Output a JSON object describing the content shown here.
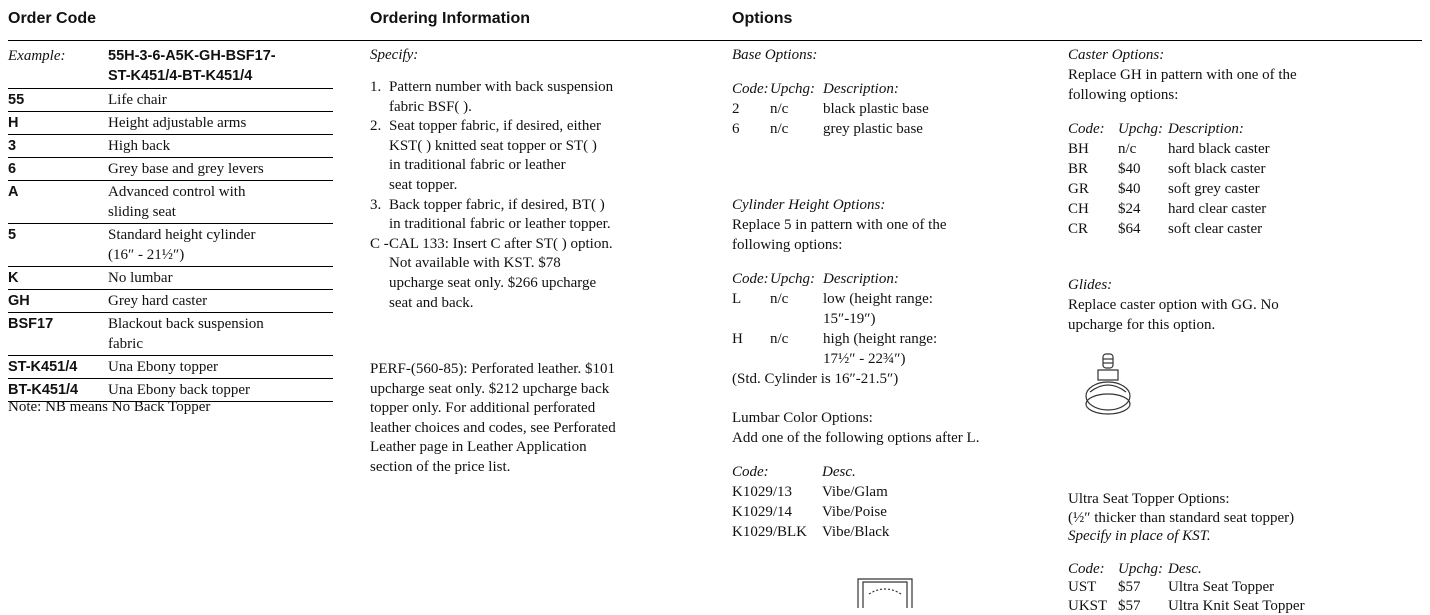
{
  "header": {
    "order_code": "Order Code",
    "ordering_information": "Ordering Information",
    "options": "Options"
  },
  "order_code": {
    "example_label": "Example:",
    "example_value": [
      "55H-3-6-A5K-GH-BSF17-",
      "ST-K451/4-BT-K451/4"
    ],
    "rows": [
      [
        "55",
        "Life chair"
      ],
      [
        "H",
        "Height adjustable arms"
      ],
      [
        "3",
        "High back"
      ],
      [
        "6",
        "Grey base and grey levers"
      ],
      [
        "A",
        [
          "Advanced control with",
          "sliding seat"
        ]
      ],
      [
        "5",
        [
          "Standard height cylinder",
          "(16″ - 21½″)"
        ]
      ],
      [
        "K",
        "No lumbar"
      ],
      [
        "GH",
        "Grey hard caster"
      ],
      [
        "BSF17",
        [
          "Blackout back suspension",
          "fabric"
        ]
      ],
      [
        "ST-K451/4",
        "Una Ebony topper"
      ],
      [
        "BT-K451/4",
        "Una Ebony back topper"
      ]
    ],
    "note": "Note: NB means No Back Topper"
  },
  "ordering_info": {
    "specify": "Specify:",
    "items": [
      {
        "num": "1.",
        "lines": [
          "Pattern number with back suspension",
          "fabric BSF( )."
        ]
      },
      {
        "num": "2.",
        "lines": [
          "Seat topper fabric, if desired, either",
          "KST( ) knitted seat topper or ST( )",
          "in traditional fabric or leather",
          "seat topper."
        ]
      },
      {
        "num": "3.",
        "lines": [
          "Back topper fabric, if desired, BT( )",
          "in traditional fabric or leather topper."
        ]
      },
      {
        "num": "C -",
        "lines": [
          "CAL 133: Insert C after ST( ) option.",
          "Not available with KST. $78",
          "upcharge seat only. $266 upcharge",
          "seat and back."
        ]
      }
    ],
    "perf": [
      "PERF-(560-85): Perforated leather. $101",
      "upcharge seat only. $212 upcharge back",
      "topper only. For additional perforated",
      "leather choices and codes, see Perforated",
      "Leather page in Leather Application",
      "section of the price list."
    ]
  },
  "options": {
    "base": {
      "title": "Base Options:",
      "headers": [
        "Code:",
        "Upchg:",
        "Description:"
      ],
      "rows": [
        [
          "2",
          "n/c",
          "black plastic base"
        ],
        [
          "6",
          "n/c",
          "grey plastic base"
        ]
      ]
    },
    "cylinder": {
      "title": "Cylinder Height Options:",
      "text": [
        "Replace 5 in pattern with one of the",
        "following options:"
      ],
      "headers": [
        "Code:",
        "Upchg:",
        "Description:"
      ],
      "rows": [
        [
          "L",
          "n/c",
          [
            "low (height range:",
            "15″-19″)"
          ]
        ],
        [
          "H",
          "n/c",
          [
            "high (height range:",
            "17½″ - 22¾″)"
          ]
        ]
      ],
      "note": "(Std. Cylinder is 16″-21.5″)"
    },
    "lumbar": {
      "title": "Lumbar Color Options:",
      "text": [
        "Add one of the following options after L."
      ],
      "headers": [
        "Code:",
        "Desc."
      ],
      "rows": [
        [
          "K1029/13",
          "Vibe/Glam"
        ],
        [
          "K1029/14",
          "Vibe/Poise"
        ],
        [
          "K1029/BLK",
          "Vibe/Black"
        ]
      ]
    },
    "caster": {
      "title": "Caster Options:",
      "text": [
        "Replace GH in pattern with one of the",
        "following options:"
      ],
      "headers": [
        "Code:",
        "Upchg:",
        "Description:"
      ],
      "rows": [
        [
          "BH",
          "n/c",
          "hard black caster"
        ],
        [
          "BR",
          "$40",
          "soft black caster"
        ],
        [
          "GR",
          "$40",
          "soft grey caster"
        ],
        [
          "CH",
          "$24",
          "hard clear caster"
        ],
        [
          "CR",
          "$64",
          "soft clear caster"
        ]
      ]
    },
    "glides": {
      "title": "Glides:",
      "text": [
        "Replace caster option with GG. No",
        "upcharge for this option."
      ]
    },
    "ultra": {
      "title": "Ultra Seat Topper Options:",
      "text": [
        "(½″ thicker than standard seat topper)"
      ],
      "specify": "Specify in place of KST.",
      "headers": [
        "Code:",
        "Upchg:",
        "Desc."
      ],
      "rows": [
        [
          "UST",
          "$57",
          "Ultra Seat Topper"
        ],
        [
          "UKST",
          "$57",
          "Ultra Knit Seat Topper"
        ]
      ]
    }
  }
}
